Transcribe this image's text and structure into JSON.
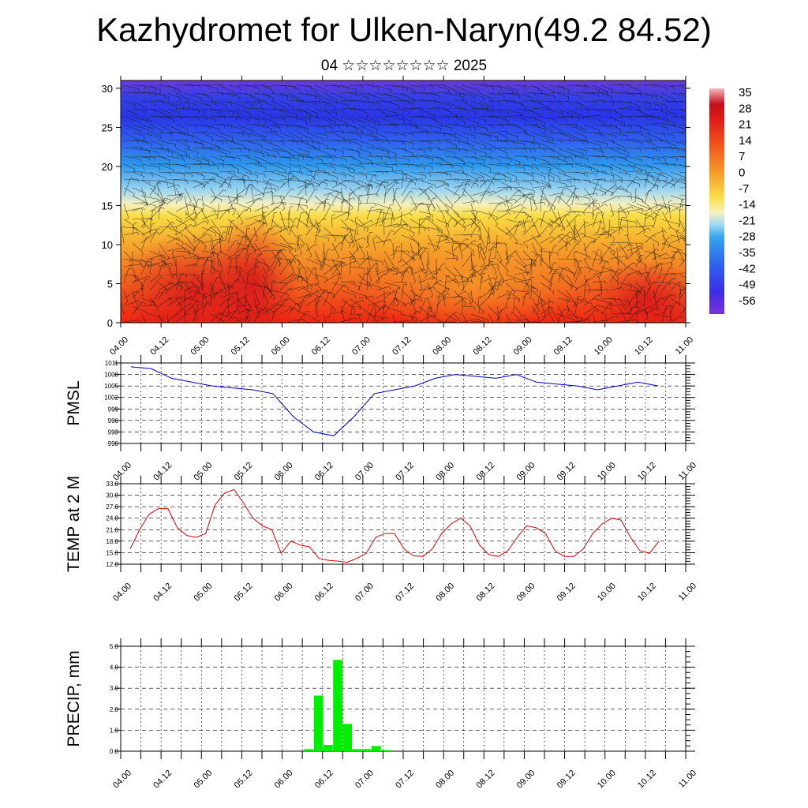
{
  "header": {
    "title": "Kazhydromet for Ulken-Naryn(49.2 84.52)",
    "subtitle": "04 ☆☆☆☆☆☆☆☆ 2025"
  },
  "time_ticks": [
    "04.00",
    "04.12",
    "05.00",
    "05.12",
    "06.00",
    "06.12",
    "07.00",
    "07.12",
    "08.00",
    "08.12",
    "09.00",
    "09.12",
    "10.00",
    "10.12",
    "11.00"
  ],
  "chart_data": [
    {
      "type": "heatmap",
      "name": "temperature-wind cross-section",
      "x": [
        "04.00",
        "04.12",
        "05.00",
        "05.12",
        "06.00",
        "06.12",
        "07.00",
        "07.12",
        "08.00",
        "08.12",
        "09.00",
        "09.12",
        "10.00",
        "10.12",
        "11.00"
      ],
      "y_ticks": [
        "0",
        "5",
        "10",
        "15",
        "20",
        "25",
        "30"
      ],
      "ylim": [
        0,
        31
      ],
      "colorbar_labels": [
        "35",
        "28",
        "21",
        "14",
        "7",
        "0",
        "-7",
        "-14",
        "-21",
        "-28",
        "-35",
        "-42",
        "-49",
        "-56"
      ],
      "colorbar_range": [
        -60,
        38
      ],
      "colorbar_colors": [
        "#6a2cd6",
        "#2a3bea",
        "#2f6ff0",
        "#33a6ee",
        "#9ad6f2",
        "#f4f2c0",
        "#f9e04a",
        "#f6a72a",
        "#f2611c",
        "#e3201a",
        "#c8121a",
        "#f4b4b8"
      ]
    },
    {
      "type": "line",
      "ylabel": "PMSL",
      "y_ticks": [
        "990",
        "993",
        "996",
        "999",
        "1002",
        "1005",
        "1008",
        "1011"
      ],
      "ylim": [
        990,
        1011
      ],
      "color": "#0000cc",
      "x_hours": [
        -6,
        0,
        6,
        12,
        18,
        24,
        30,
        36,
        42,
        48,
        54,
        60,
        66,
        72,
        78,
        84,
        90,
        96,
        102,
        108,
        114,
        120,
        126,
        132,
        138,
        144,
        150
      ],
      "values": [
        1010,
        1009.5,
        1007,
        1006,
        1005,
        1004.5,
        1004,
        1003,
        997,
        993,
        992,
        997,
        1003,
        1004,
        1005,
        1007,
        1008,
        1007.5,
        1007,
        1008,
        1006,
        1005.5,
        1005,
        1004,
        1005,
        1006,
        1005
      ]
    },
    {
      "type": "line",
      "ylabel": "TEMP at 2 M",
      "y_ticks": [
        "12.0",
        "15.0",
        "18.0",
        "21.0",
        "24.0",
        "27.0",
        "30.0",
        "33.0"
      ],
      "ylim": [
        12,
        33
      ],
      "color": "#dd0000",
      "values": [
        16,
        21,
        25,
        26.5,
        26.5,
        21.5,
        19.5,
        19,
        20,
        27.5,
        30.5,
        31.5,
        28,
        24,
        22,
        21,
        14.8,
        18,
        17,
        16.5,
        13.5,
        13,
        12.8,
        12.5,
        13.5,
        14.8,
        19,
        20,
        20,
        16,
        14.2,
        14,
        16,
        20,
        22.5,
        24,
        22,
        17,
        14.5,
        14,
        15.5,
        19,
        22,
        21.5,
        20,
        15.5,
        14,
        14,
        16,
        20,
        22.5,
        24,
        23.5,
        19,
        15.5,
        14.8,
        18
      ]
    },
    {
      "type": "bar",
      "ylabel": "PRECIP, mm",
      "y_ticks": [
        "0.0",
        "1.0",
        "2.0",
        "3.0",
        "4.0",
        "5.0"
      ],
      "ylim": [
        0,
        5
      ],
      "color": "#00ee00",
      "bar_values": [
        0,
        0,
        0,
        0,
        0,
        0,
        0,
        0,
        0,
        0,
        0,
        0,
        0,
        0,
        0,
        0,
        0,
        0,
        0.1,
        2.65,
        0.3,
        4.35,
        1.3,
        0.1,
        0.1,
        0.25,
        0.05,
        0,
        0,
        0,
        0,
        0,
        0,
        0,
        0,
        0,
        0,
        0,
        0,
        0,
        0,
        0,
        0,
        0,
        0,
        0,
        0,
        0,
        0,
        0,
        0,
        0,
        0,
        0,
        0,
        0
      ]
    }
  ]
}
